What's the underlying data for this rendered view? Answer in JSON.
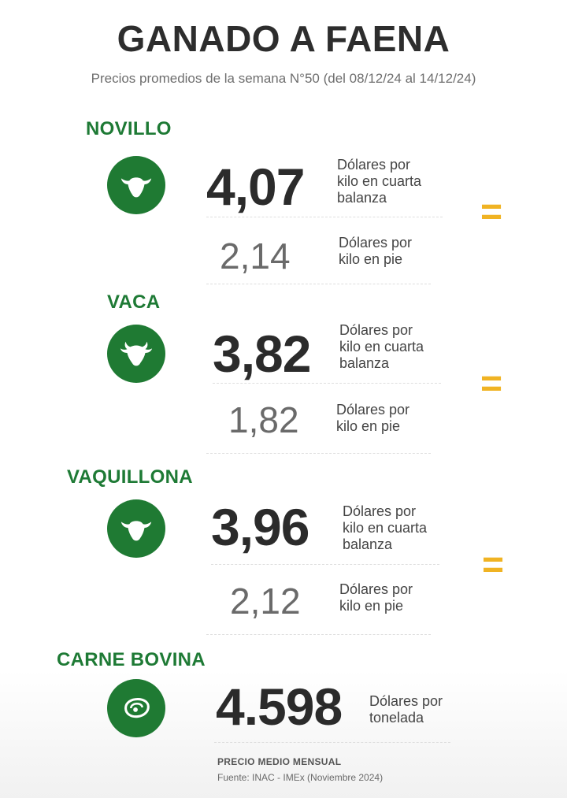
{
  "header": {
    "title": "GANADO A FAENA",
    "subtitle": "Precios promedios de la semana N°50 (del 08/12/24 al 14/12/24)"
  },
  "colors": {
    "brand_green": "#1f7a33",
    "accent_yellow": "#f0b323"
  },
  "categories": [
    {
      "label": "NOVILLO",
      "icon": "steer-head-icon",
      "main_value": "4,07",
      "main_unit": [
        "Dólares por",
        "kilo en cuarta",
        "balanza"
      ],
      "secondary_value": "2,14",
      "secondary_unit": [
        "Dólares por",
        "kilo en pie"
      ],
      "trend": "="
    },
    {
      "label": "VACA",
      "icon": "cow-head-icon",
      "main_value": "3,82",
      "main_unit": [
        "Dólares por",
        "kilo en cuarta",
        "balanza"
      ],
      "secondary_value": "1,82",
      "secondary_unit": [
        "Dólares por",
        "kilo en pie"
      ],
      "trend": "="
    },
    {
      "label": "VAQUILLONA",
      "icon": "heifer-head-icon",
      "main_value": "3,96",
      "main_unit": [
        "Dólares por",
        "kilo en cuarta",
        "balanza"
      ],
      "secondary_value": "2,12",
      "secondary_unit": [
        "Dólares por",
        "kilo en pie"
      ],
      "trend": "="
    },
    {
      "label": "CARNE BOVINA",
      "icon": "beef-steak-icon",
      "main_value": "4.598",
      "main_unit": [
        "Dólares por",
        "tonelada"
      ]
    }
  ],
  "footer": {
    "title": "PRECIO MEDIO MENSUAL",
    "source": "Fuente: INAC - IMEx (Noviembre 2024)"
  }
}
